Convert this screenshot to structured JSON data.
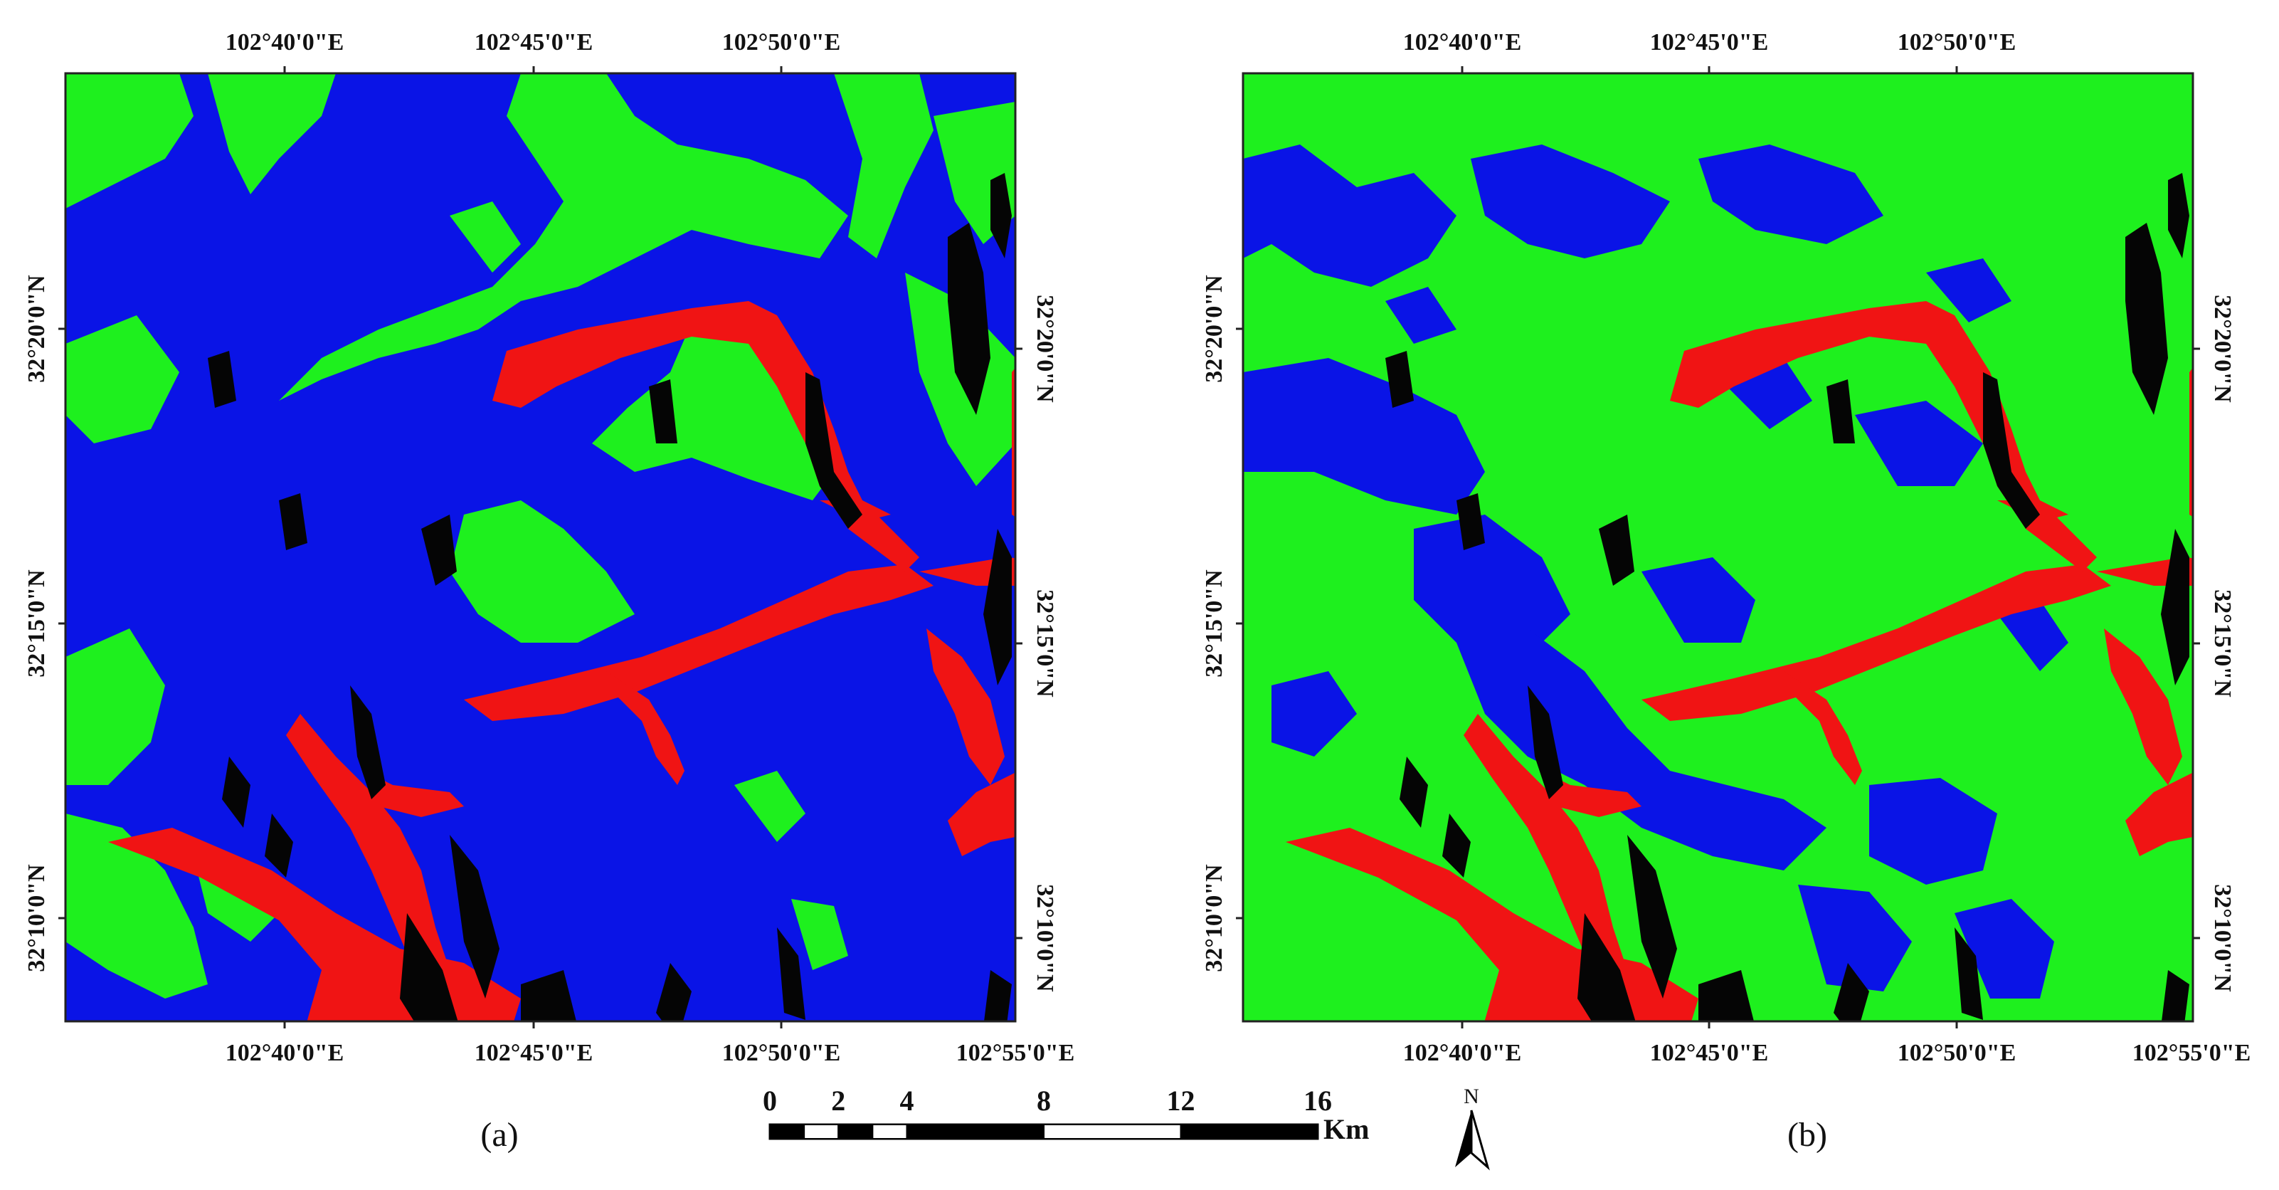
{
  "panels": [
    {
      "caption": "(a)",
      "top_lon_ticks": [
        "102°40'0\"E",
        "102°45'0\"E",
        "102°50'0\"E"
      ],
      "bottom_lon_ticks": [
        "102°40'0\"E",
        "102°45'0\"E",
        "102°50'0\"E",
        "102°55'0\"E"
      ],
      "left_lat_ticks": [
        "32°20'0\"N",
        "32°15'0\"N",
        "32°10'0\"N"
      ],
      "right_lat_ticks": [
        "32°20'0\"N",
        "32°15'0\"N",
        "32°10'0\"N"
      ],
      "dominant_class": "blue"
    },
    {
      "caption": "(b)",
      "top_lon_ticks": [
        "102°40'0\"E",
        "102°45'0\"E",
        "102°50'0\"E"
      ],
      "bottom_lon_ticks": [
        "102°40'0\"E",
        "102°45'0\"E",
        "102°50'0\"E",
        "102°55'0\"E"
      ],
      "left_lat_ticks": [
        "32°20'0\"N",
        "32°15'0\"N",
        "32°10'0\"N"
      ],
      "right_lat_ticks": [
        "32°20'0\"N",
        "32°15'0\"N",
        "32°10'0\"N"
      ],
      "dominant_class": "green"
    }
  ],
  "scale_bar": {
    "ticks": [
      "0",
      "2",
      "4",
      "8",
      "12",
      "16"
    ],
    "tick_values": [
      0,
      2,
      4,
      8,
      12,
      16
    ],
    "unit": "Km"
  },
  "north_arrow": {
    "label": "N",
    "icon": "north-arrow-icon"
  },
  "colors": {
    "blue": "#0a14e6",
    "green": "#1ef01e",
    "red": "#f01414",
    "black": "#050505",
    "frame": "#222222"
  }
}
